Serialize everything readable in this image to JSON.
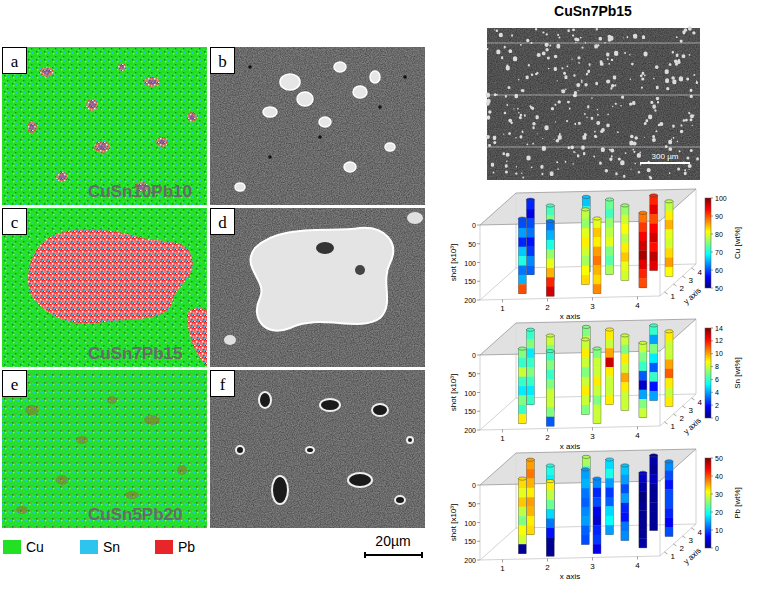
{
  "figure": {
    "panels": [
      {
        "label": "a",
        "alloy": "CuSn10Pb10"
      },
      {
        "label": "b"
      },
      {
        "label": "c",
        "alloy": "CuSn7Pb15"
      },
      {
        "label": "d"
      },
      {
        "label": "e",
        "alloy": "CuSn5Pb20"
      },
      {
        "label": "f"
      }
    ],
    "legend": [
      {
        "name": "Cu",
        "color": "#22e022"
      },
      {
        "name": "Sn",
        "color": "#2ec4ee"
      },
      {
        "name": "Pb",
        "color": "#e8262a"
      }
    ],
    "scale_bar": "20µm",
    "inset_title": "CuSn7Pb15",
    "inset_scale_bar": "300 µm"
  },
  "chart_data": [
    {
      "type": "3d_column",
      "xlabel": "x axis",
      "ylabel": "y axis",
      "zlabel": "shot [x10³]",
      "xlim": [
        0.5,
        4.5
      ],
      "ylim": [
        0.5,
        4.5
      ],
      "zlim": [
        0,
        200
      ],
      "xticks": [
        1,
        2,
        3,
        4
      ],
      "yticks": [
        1,
        2,
        3,
        4
      ],
      "zticks": [
        0,
        50,
        100,
        150,
        200
      ],
      "colorbar": {
        "label": "Cu [wt%]",
        "range": [
          50,
          100
        ],
        "ticks": [
          50,
          60,
          70,
          80,
          90,
          100
        ]
      },
      "columns": [
        {
          "x": 1.0,
          "y": 3.6,
          "values": [
            58,
            55,
            60,
            62,
            57,
            59,
            63,
            61
          ]
        },
        {
          "x": 1.3,
          "y": 1.2,
          "values": [
            60,
            64,
            58,
            66,
            70,
            62,
            65,
            90
          ]
        },
        {
          "x": 1.6,
          "y": 2.8,
          "values": [
            72,
            75,
            70,
            68,
            74,
            78,
            73,
            71
          ]
        },
        {
          "x": 2.0,
          "y": 0.8,
          "values": [
            62,
            65,
            70,
            76,
            80,
            85,
            92,
            96
          ]
        },
        {
          "x": 2.2,
          "y": 3.8,
          "values": [
            66,
            70,
            68,
            72,
            75,
            74,
            70,
            69
          ]
        },
        {
          "x": 2.5,
          "y": 2.2,
          "values": [
            78,
            76,
            80,
            82,
            79,
            77,
            81,
            83
          ]
        },
        {
          "x": 2.8,
          "y": 3.4,
          "values": [
            74,
            72,
            76,
            78,
            80,
            75,
            73,
            77
          ]
        },
        {
          "x": 3.0,
          "y": 1.0,
          "values": [
            80,
            84,
            82,
            86,
            88,
            85,
            83,
            87
          ]
        },
        {
          "x": 3.3,
          "y": 2.6,
          "values": [
            76,
            79,
            81,
            78,
            82,
            84,
            80,
            79
          ]
        },
        {
          "x": 3.7,
          "y": 3.8,
          "values": [
            92,
            95,
            90,
            94,
            96,
            93,
            97,
            95
          ]
        },
        {
          "x": 3.9,
          "y": 1.6,
          "values": [
            88,
            91,
            94,
            96,
            98,
            95,
            92,
            90
          ]
        },
        {
          "x": 4.2,
          "y": 3.0,
          "values": [
            78,
            82,
            85,
            80,
            79,
            83,
            86,
            81
          ]
        }
      ]
    },
    {
      "type": "3d_column",
      "xlabel": "x axis",
      "ylabel": "y axis",
      "zlabel": "shot [x10³]",
      "xlim": [
        0.5,
        4.5
      ],
      "ylim": [
        0.5,
        4.5
      ],
      "zlim": [
        0,
        200
      ],
      "xticks": [
        1,
        2,
        3,
        4
      ],
      "yticks": [
        1,
        2,
        3,
        4
      ],
      "zticks": [
        0,
        50,
        100,
        150,
        200
      ],
      "colorbar": {
        "label": "Sn [wt%]",
        "range": [
          0,
          14
        ],
        "ticks": [
          0,
          2,
          4,
          6,
          8,
          10,
          12,
          14
        ]
      },
      "columns": [
        {
          "x": 1.0,
          "y": 3.6,
          "values": [
            6,
            7,
            5,
            6,
            7,
            6,
            5,
            6
          ]
        },
        {
          "x": 1.3,
          "y": 1.2,
          "values": [
            7,
            6,
            8,
            6,
            5,
            7,
            6,
            9
          ]
        },
        {
          "x": 1.6,
          "y": 2.8,
          "values": [
            8,
            7,
            9,
            12,
            8,
            7,
            8,
            9
          ]
        },
        {
          "x": 2.0,
          "y": 0.8,
          "values": [
            6,
            7,
            6,
            7,
            8,
            8,
            7,
            3
          ]
        },
        {
          "x": 2.2,
          "y": 3.8,
          "values": [
            7,
            8,
            7,
            6,
            7,
            8,
            9,
            7
          ]
        },
        {
          "x": 2.5,
          "y": 2.2,
          "values": [
            8,
            9,
            8,
            7,
            8,
            9,
            8,
            7
          ]
        },
        {
          "x": 2.8,
          "y": 3.4,
          "values": [
            9,
            8,
            10,
            13,
            9,
            8,
            8,
            9
          ]
        },
        {
          "x": 3.0,
          "y": 1.0,
          "values": [
            7,
            8,
            8,
            9,
            8,
            7,
            8,
            8
          ]
        },
        {
          "x": 3.3,
          "y": 2.6,
          "values": [
            8,
            7,
            9,
            8,
            10,
            9,
            8,
            8
          ]
        },
        {
          "x": 3.7,
          "y": 3.8,
          "values": [
            6,
            4,
            7,
            5,
            3,
            6,
            2,
            4
          ]
        },
        {
          "x": 3.9,
          "y": 1.6,
          "values": [
            8,
            7,
            6,
            3,
            1,
            4,
            7,
            8
          ]
        },
        {
          "x": 4.2,
          "y": 3.0,
          "values": [
            9,
            8,
            8,
            10,
            11,
            9,
            8,
            9
          ]
        }
      ]
    },
    {
      "type": "3d_column",
      "xlabel": "x axis",
      "ylabel": "y axis",
      "zlabel": "shot [x10³]",
      "xlim": [
        0.5,
        4.5
      ],
      "ylim": [
        0.5,
        4.5
      ],
      "zlim": [
        0,
        200
      ],
      "xticks": [
        1,
        2,
        3,
        4
      ],
      "yticks": [
        1,
        2,
        3,
        4
      ],
      "zticks": [
        0,
        50,
        100,
        150,
        200
      ],
      "colorbar": {
        "label": "Pb [wt%]",
        "range": [
          0,
          50
        ],
        "ticks": [
          0,
          10,
          20,
          30,
          40,
          50
        ]
      },
      "columns": [
        {
          "x": 1.0,
          "y": 3.6,
          "values": [
            36,
            38,
            35,
            32,
            36,
            35,
            32,
            33
          ]
        },
        {
          "x": 1.3,
          "y": 1.2,
          "values": [
            33,
            30,
            34,
            28,
            25,
            31,
            29,
            1
          ]
        },
        {
          "x": 1.6,
          "y": 2.8,
          "values": [
            20,
            18,
            21,
            20,
            18,
            15,
            19,
            20
          ]
        },
        {
          "x": 2.0,
          "y": 0.8,
          "values": [
            32,
            28,
            24,
            17,
            12,
            7,
            1,
            1
          ]
        },
        {
          "x": 2.2,
          "y": 3.8,
          "values": [
            27,
            22,
            25,
            22,
            18,
            18,
            21,
            24
          ]
        },
        {
          "x": 2.5,
          "y": 2.2,
          "values": [
            14,
            15,
            12,
            11,
            13,
            14,
            11,
            10
          ]
        },
        {
          "x": 2.8,
          "y": 3.4,
          "values": [
            17,
            20,
            14,
            9,
            11,
            17,
            19,
            14
          ]
        },
        {
          "x": 3.0,
          "y": 1.0,
          "values": [
            13,
            8,
            10,
            5,
            4,
            8,
            9,
            5
          ]
        },
        {
          "x": 3.3,
          "y": 2.6,
          "values": [
            16,
            14,
            10,
            14,
            8,
            7,
            12,
            13
          ]
        },
        {
          "x": 3.7,
          "y": 3.8,
          "values": [
            2,
            1,
            3,
            1,
            1,
            1,
            1,
            1
          ]
        },
        {
          "x": 3.9,
          "y": 1.6,
          "values": [
            4,
            2,
            0,
            1,
            1,
            1,
            1,
            2
          ]
        },
        {
          "x": 4.2,
          "y": 3.0,
          "values": [
            13,
            10,
            7,
            10,
            10,
            8,
            6,
            10
          ]
        }
      ]
    }
  ]
}
